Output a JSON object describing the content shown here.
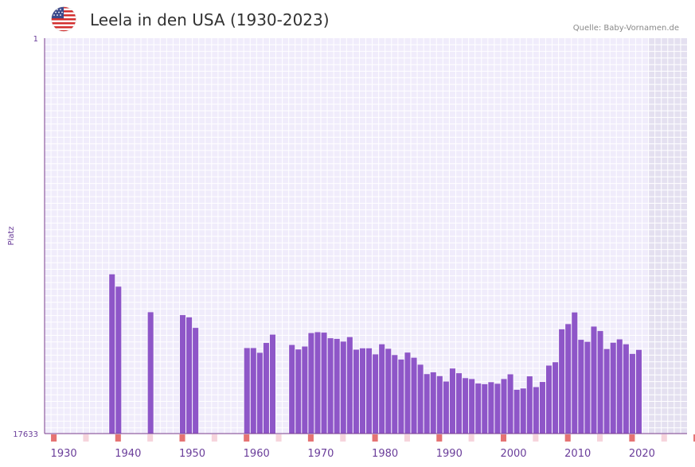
{
  "header": {
    "title": "Leela in den USA (1930-2023)",
    "source": "Quelle: Baby-Vornamen.de",
    "flag_icon": "usa-flag-icon"
  },
  "colors": {
    "bar": "#8e56c8",
    "grid_bg": "#f0ecfb",
    "future_bg": "#e4e0f0",
    "axis": "#7a3d8c",
    "tick_text": "#6a3d9a",
    "marker_strong": "#e57373",
    "marker_light": "#f6d4dc"
  },
  "chart_data": {
    "type": "bar",
    "title": "Leela in den USA (1930-2023)",
    "xlabel": "",
    "ylabel": "Platz",
    "y_inverted": true,
    "ylim": [
      17633,
      1
    ],
    "y_tick_labels": [
      "1",
      "17633"
    ],
    "x_tick_labels": [
      "1930",
      "1940",
      "1950",
      "1960",
      "1970",
      "1980",
      "1990",
      "2000",
      "2010",
      "2020"
    ],
    "x_range": [
      1929,
      2029
    ],
    "future_from": 2023,
    "years": [
      1939,
      1940,
      1945,
      1950,
      1951,
      1952,
      1960,
      1961,
      1962,
      1963,
      1964,
      1967,
      1968,
      1969,
      1970,
      1971,
      1972,
      1973,
      1974,
      1975,
      1976,
      1977,
      1978,
      1979,
      1980,
      1981,
      1982,
      1983,
      1984,
      1985,
      1986,
      1987,
      1988,
      1989,
      1990,
      1991,
      1992,
      1993,
      1994,
      1995,
      1996,
      1997,
      1998,
      1999,
      2000,
      2001,
      2002,
      2003,
      2004,
      2005,
      2006,
      2007,
      2008,
      2009,
      2010,
      2011,
      2012,
      2013,
      2014,
      2015,
      2016,
      2017,
      2018,
      2019,
      2020,
      2021
    ],
    "ranks": [
      10530,
      11080,
      12220,
      12350,
      12450,
      12920,
      13820,
      13820,
      14030,
      13590,
      13220,
      13680,
      13880,
      13750,
      13150,
      13110,
      13130,
      13380,
      13410,
      13530,
      13330,
      13890,
      13830,
      13830,
      14100,
      13650,
      13850,
      14130,
      14330,
      14020,
      14250,
      14560,
      14980,
      14900,
      15070,
      15310,
      14730,
      14940,
      15160,
      15200,
      15400,
      15430,
      15340,
      15410,
      15200,
      14990,
      15680,
      15620,
      15080,
      15560,
      15330,
      14600,
      14450,
      12980,
      12750,
      12230,
      13450,
      13540,
      12860,
      13060,
      13860,
      13580,
      13430,
      13650,
      14080,
      13900
    ],
    "markers_strong": [
      1930,
      1940,
      1950,
      1960,
      1970,
      1980,
      1990,
      2000,
      2010,
      2020,
      2030
    ],
    "markers_light": [
      1935,
      1945,
      1955,
      1965,
      1975,
      1985,
      1995,
      2005,
      2015,
      2025
    ]
  }
}
